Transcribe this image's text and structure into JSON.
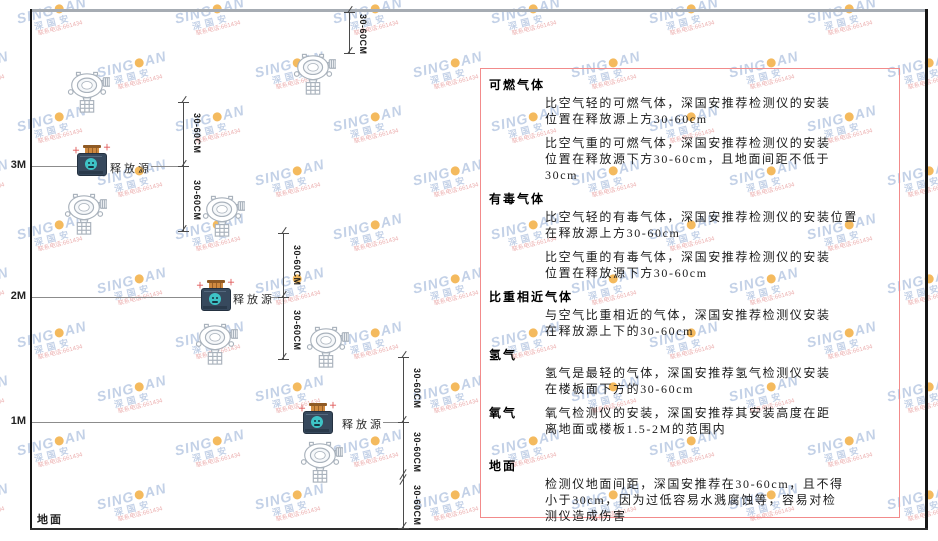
{
  "watermark": {
    "brand_prefix": "SING",
    "brand_suffix": "AN",
    "brand_sub": "深国安",
    "contact": "联系电话:661434",
    "brand_color": "#b9c9e3",
    "dot_color": "#f3ae42",
    "contact_color": "#e9a2a2"
  },
  "diagram": {
    "ground_label": "地面",
    "release_source_label": "释放源",
    "dim_label": "30-60CM",
    "levels": [
      {
        "label": "3M"
      },
      {
        "label": "2M"
      },
      {
        "label": "1M"
      }
    ]
  },
  "panel": {
    "border_color": "#f28b8b",
    "sections": [
      {
        "title": "可燃气体",
        "inline": false,
        "extra_gap": false,
        "paragraphs": [
          [
            "比空气轻的可燃气体，深国安推荐检测仪的安装",
            "位置在释放源上方30-60cm"
          ],
          [
            "比空气重的可燃气体，深国安推荐检测仪的安装",
            "位置在释放源下方30-60cm，且地面间距不低于",
            "30cm"
          ]
        ]
      },
      {
        "title": "有毒气体",
        "inline": false,
        "extra_gap": false,
        "paragraphs": [
          [
            "比空气轻的有毒气体，深国安推荐检测仪的安装位置",
            "在释放源上方30-60cm"
          ],
          [
            "比空气重的有毒气体，深国安推荐检测仪的安装",
            "位置在释放源下方30-60cm"
          ]
        ]
      },
      {
        "title": "比重相近气体",
        "inline": false,
        "extra_gap": false,
        "paragraphs": [
          [
            "与空气比重相近的气体，深国安推荐检测仪安装",
            "在释放源上下的30-60cm"
          ]
        ]
      },
      {
        "title": "氢气",
        "inline": false,
        "extra_gap": false,
        "paragraphs": [
          [
            "氢气是最轻的气体，深国安推荐氢气检测仪安装",
            "在楼板面下方的30-60cm"
          ]
        ]
      },
      {
        "title": "氧气",
        "inline": true,
        "extra_gap": false,
        "paragraphs": [
          [
            "氧气检测仪的安装，深国安推荐其安装高度在距",
            "离地面或楼板1.5-2M的范围内"
          ]
        ]
      },
      {
        "title": "地面",
        "inline": false,
        "extra_gap": true,
        "paragraphs": [
          [
            "检测仪地面间距，深国安推荐在30-60cm，且不得",
            "小于30cm，因为过低容易水溅腐蚀等，容易对检",
            "测仪造成伤害"
          ]
        ]
      }
    ]
  }
}
